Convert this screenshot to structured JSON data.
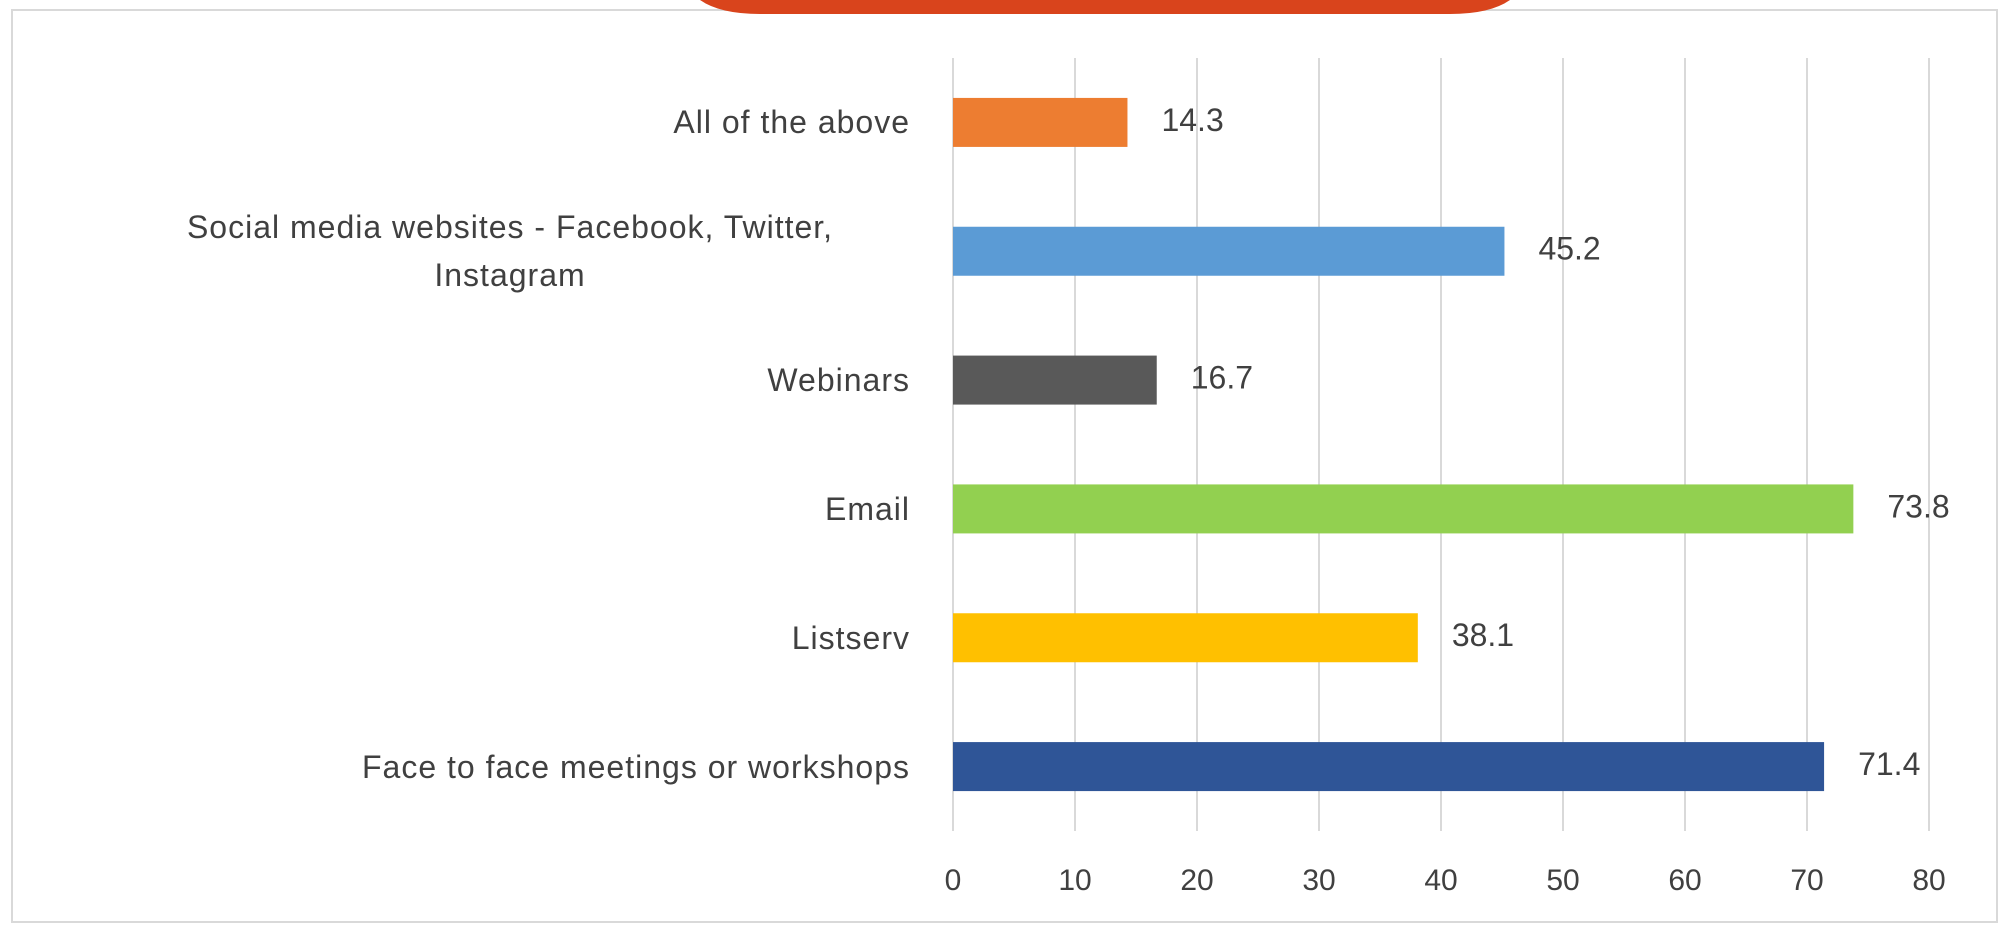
{
  "chart_data": {
    "type": "bar",
    "orientation": "horizontal",
    "categories": [
      "All of the above",
      "Social media websites - Facebook, Twitter, Instagram",
      "Webinars",
      "Email",
      "Listserv",
      "Face to face meetings or workshops"
    ],
    "values": [
      14.3,
      45.2,
      16.7,
      73.8,
      38.1,
      71.4
    ],
    "colors": [
      "#ed7d31",
      "#5b9bd5",
      "#595959",
      "#92d050",
      "#ffc000",
      "#2f5597"
    ],
    "xlim": [
      0,
      80
    ],
    "xticks": [
      0,
      10,
      20,
      30,
      40,
      50,
      60,
      70,
      80
    ],
    "grid": true,
    "data_labels": true
  }
}
